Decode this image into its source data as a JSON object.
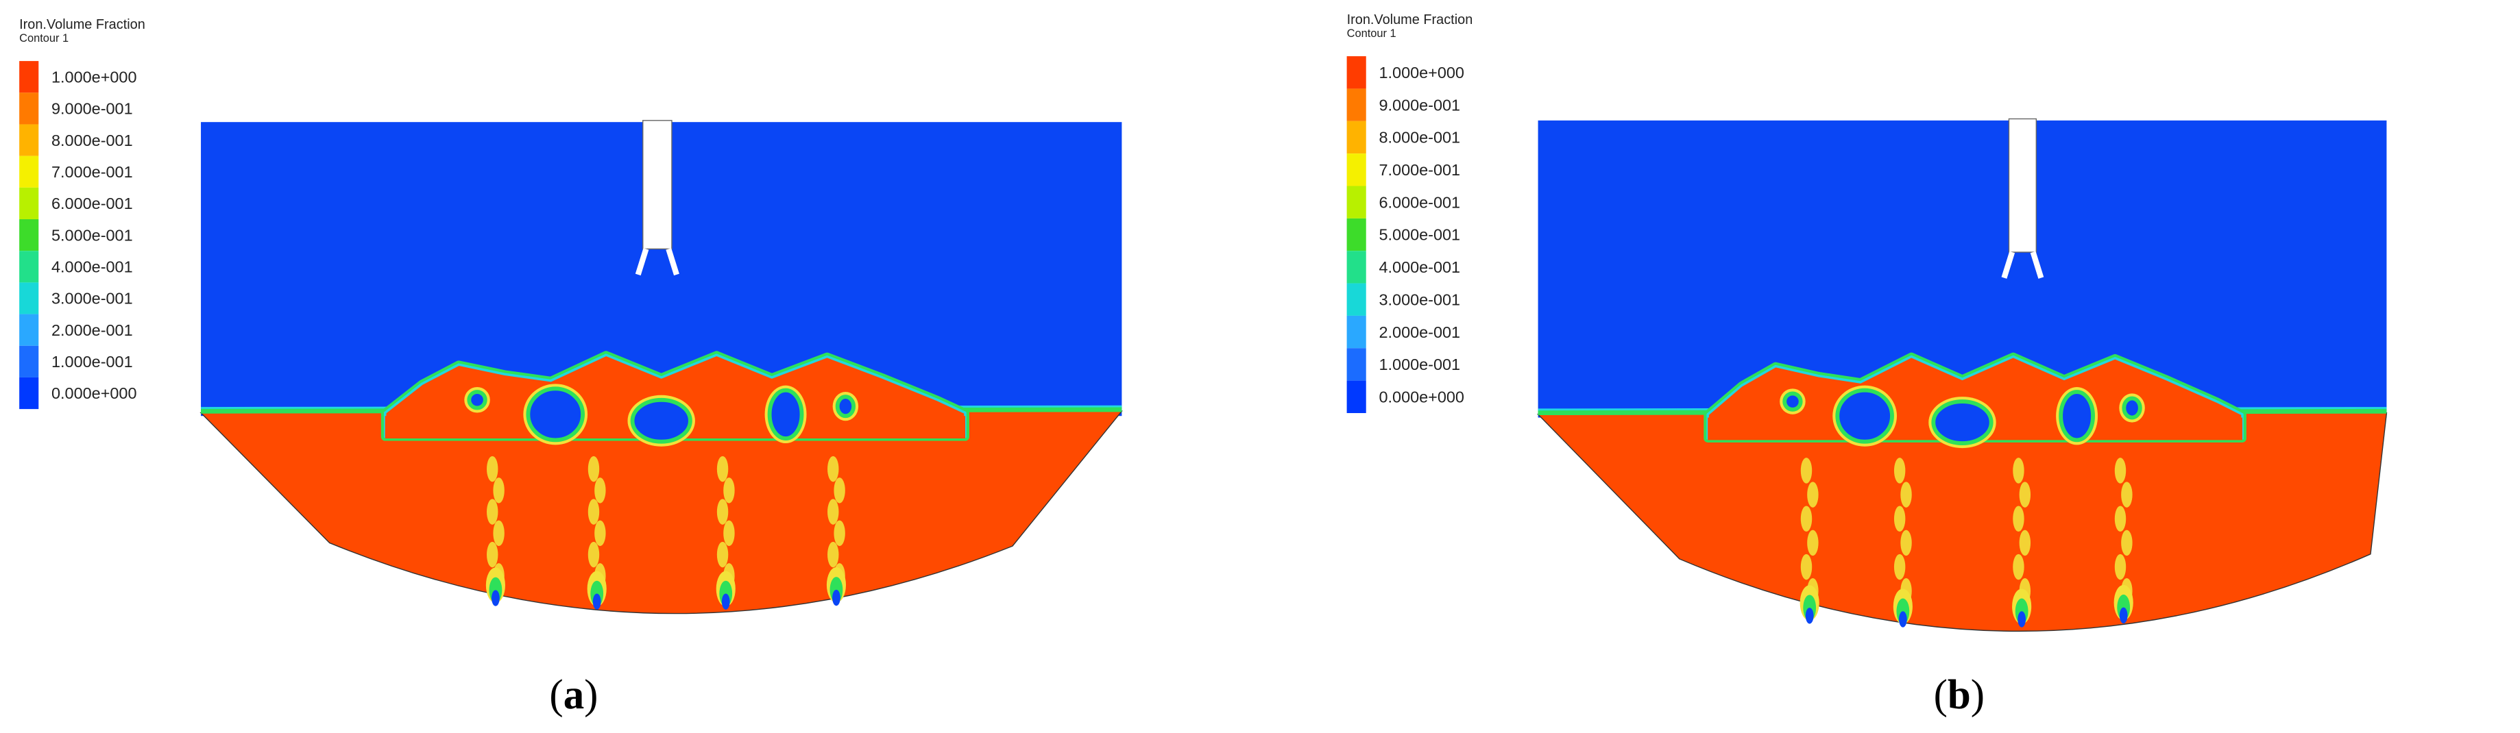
{
  "panels": [
    {
      "legend_title": "Iron.Volume Fraction",
      "legend_subtitle": "Contour 1",
      "legend_labels": [
        "1.000e+000",
        "9.000e-001",
        "8.000e-001",
        "7.000e-001",
        "6.000e-001",
        "5.000e-001",
        "4.000e-001",
        "3.000e-001",
        "2.000e-001",
        "1.000e-001",
        "0.000e+000"
      ],
      "caption": [
        "(",
        "a",
        ")"
      ]
    },
    {
      "legend_title": "Iron.Volume Fraction",
      "legend_subtitle": "Contour 1",
      "legend_labels": [
        "1.000e+000",
        "9.000e-001",
        "8.000e-001",
        "7.000e-001",
        "6.000e-001",
        "5.000e-001",
        "4.000e-001",
        "3.000e-001",
        "2.000e-001",
        "1.000e-001",
        "0.000e+000"
      ],
      "caption": [
        "(",
        "b",
        ")"
      ]
    }
  ]
}
